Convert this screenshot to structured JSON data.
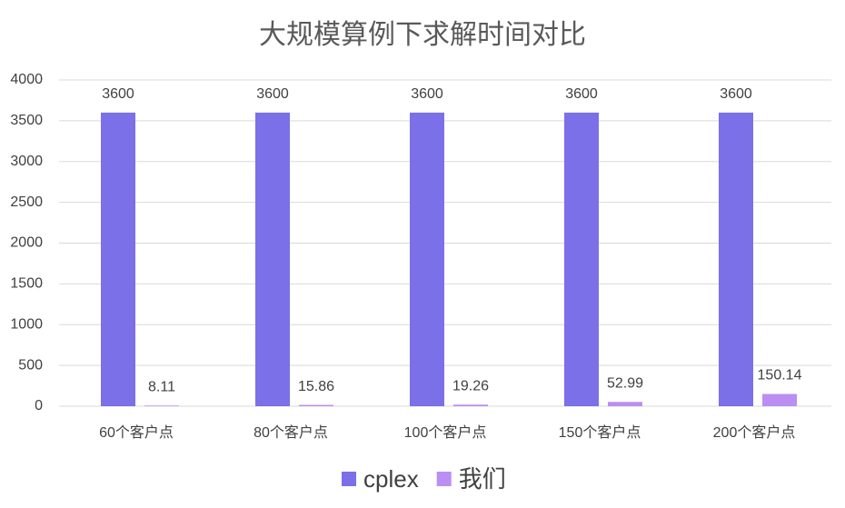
{
  "chart_data": {
    "type": "bar",
    "title": "大规模算例下求解时间对比",
    "categories": [
      "60个客户点",
      "80个客户点",
      "100个客户点",
      "150个客户点",
      "200个客户点"
    ],
    "series": [
      {
        "name": "cplex",
        "color": "#7b70e8",
        "values": [
          3600,
          3600,
          3600,
          3600,
          3600
        ]
      },
      {
        "name": "我们",
        "color": "#bb8ef2",
        "values": [
          8.11,
          15.86,
          19.26,
          52.99,
          150.14
        ]
      }
    ],
    "ylim": [
      0,
      4000
    ],
    "yticks": [
      0,
      500,
      1000,
      1500,
      2000,
      2500,
      3000,
      3500,
      4000
    ],
    "grid": true,
    "legend": "bottom"
  }
}
